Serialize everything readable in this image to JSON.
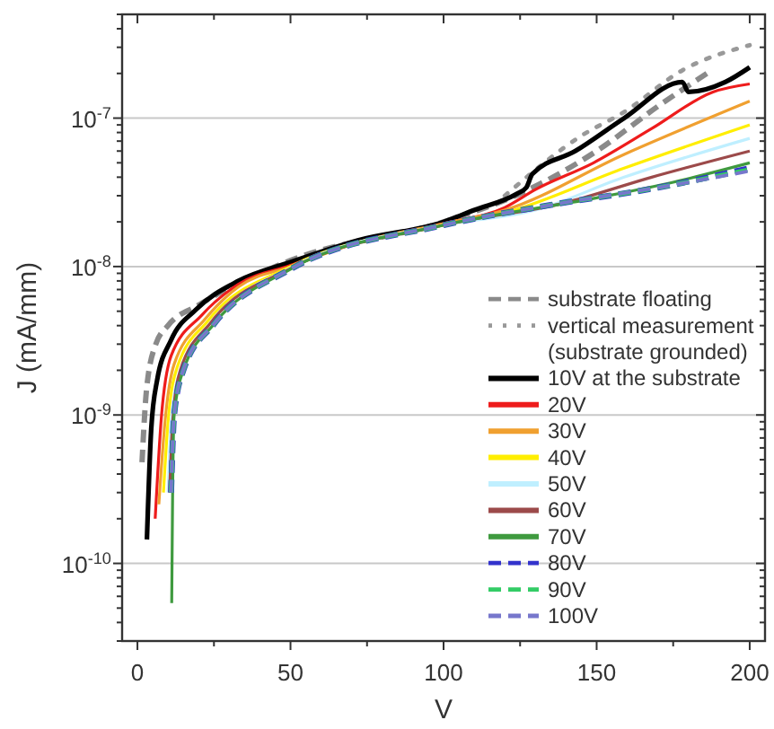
{
  "chart_data": {
    "type": "line",
    "xlabel": "V",
    "ylabel": "J (mA/mm)",
    "log": "y",
    "grid": "y",
    "legend": "bottom right",
    "xlim": [
      -5,
      205
    ],
    "xticks": [
      0,
      50,
      100,
      150,
      200
    ],
    "ylim": [
      3e-11,
      5e-07
    ],
    "yticks": [
      {
        "value": 1e-10,
        "label": "10$^{-10}$"
      },
      {
        "value": 1e-09,
        "label": "10$^{-9}$"
      },
      {
        "value": 1e-08,
        "label": "10$^{-8}$"
      },
      {
        "value": 1e-07,
        "label": "10$^{-7}$"
      }
    ],
    "series": [
      {
        "name": "substrate floating",
        "color": "#8a8a8a",
        "line_style": "dashed",
        "x": [
          1.5,
          3,
          6,
          10,
          20,
          50,
          100,
          125,
          150,
          170,
          186
        ],
        "values": [
          4.8e-10,
          1.5e-09,
          3e-09,
          4e-09,
          5.5e-09,
          1.1e-08,
          2e-08,
          3.1e-08,
          6e-08,
          1.2e-07,
          2e-07
        ]
      },
      {
        "name": "vertical measurement (substrate grounded)",
        "color": "#999999",
        "line_style": "dotted",
        "x": [
          120,
          145,
          159,
          178,
          200
        ],
        "values": [
          3e-08,
          7.6e-08,
          1.1e-07,
          2.1e-07,
          3.1e-07
        ]
      },
      {
        "name": "10V at the substrate",
        "color": "#000000",
        "line_style": "solid",
        "x": [
          3.1,
          4.5,
          6.4,
          11,
          19,
          33,
          50,
          72,
          100,
          110,
          124,
          127,
          129,
          143,
          159,
          178,
          180,
          192,
          200
        ],
        "values": [
          1.45e-10,
          8e-10,
          1.7e-09,
          3.2e-09,
          5.1e-09,
          8e-09,
          1.07e-08,
          1.5e-08,
          2e-08,
          2.4e-08,
          3.1e-08,
          3.4e-08,
          4.2e-08,
          6e-08,
          1e-07,
          1.75e-07,
          1.5e-07,
          1.75e-07,
          2.2e-07
        ]
      },
      {
        "name": "20V",
        "color": "#ee1c1c",
        "line_style": "solid",
        "x": [
          5.8,
          7.8,
          11,
          21,
          33,
          50,
          72,
          100,
          120,
          130,
          149,
          168,
          188,
          200
        ],
        "values": [
          2e-10,
          9.5e-10,
          2.5e-09,
          4.7e-09,
          7.6e-09,
          1.02e-08,
          1.45e-08,
          1.95e-08,
          2.5e-08,
          3.3e-08,
          5e-08,
          8.5e-08,
          1.5e-07,
          1.7e-07
        ]
      },
      {
        "name": "30V",
        "color": "#f0a030",
        "line_style": "solid",
        "x": [
          7,
          9,
          12,
          22,
          33,
          50,
          72,
          100,
          120,
          159,
          200
        ],
        "values": [
          2.5e-10,
          9e-10,
          2.2e-09,
          4.4e-09,
          7.3e-09,
          1e-08,
          1.45e-08,
          1.95e-08,
          2.4e-08,
          5.7e-08,
          1.3e-07
        ]
      },
      {
        "name": "40V",
        "color": "#ffee00",
        "line_style": "solid",
        "x": [
          8.5,
          10,
          13,
          23,
          50,
          100,
          120,
          159,
          200
        ],
        "values": [
          3e-10,
          9e-10,
          2.1e-09,
          4.3e-09,
          1e-08,
          1.9e-08,
          2.3e-08,
          4.6e-08,
          9e-08
        ]
      },
      {
        "name": "50V",
        "color": "#bfefff",
        "line_style": "solid",
        "x": [
          10,
          11,
          14,
          24,
          50,
          100,
          130,
          159,
          200
        ],
        "values": [
          3e-10,
          9e-10,
          2e-09,
          4.2e-09,
          9.8e-09,
          1.9e-08,
          2.4e-08,
          4e-08,
          7.3e-08
        ]
      },
      {
        "name": "60V",
        "color": "#9c4a4a",
        "line_style": "solid",
        "x": [
          10.5,
          11.5,
          14,
          24,
          50,
          100,
          140,
          168,
          200
        ],
        "values": [
          3e-10,
          9e-10,
          2e-09,
          4.2e-09,
          9.7e-09,
          1.9e-08,
          2.7e-08,
          4e-08,
          6e-08
        ]
      },
      {
        "name": "70V",
        "color": "#3f9a3f",
        "line_style": "solid",
        "x": [
          11.2,
          11.5,
          12,
          15,
          25,
          50,
          100,
          150,
          175,
          200
        ],
        "values": [
          5.4e-11,
          3e-10,
          1e-09,
          2e-09,
          4.1e-09,
          9.6e-09,
          1.9e-08,
          2.9e-08,
          3.7e-08,
          5e-08
        ]
      },
      {
        "name": "80V",
        "color": "#3333cc",
        "line_style": "dashed",
        "x": [
          11,
          12,
          15,
          25,
          50,
          100,
          135,
          170,
          200
        ],
        "values": [
          3e-10,
          1e-09,
          2e-09,
          4.1e-09,
          9.6e-09,
          1.9e-08,
          2.6e-08,
          3.4e-08,
          4.6e-08
        ]
      },
      {
        "name": "90V",
        "color": "#33cc66",
        "line_style": "dashed",
        "x": [
          11,
          12,
          15,
          25,
          50,
          100,
          135,
          170,
          200
        ],
        "values": [
          3e-10,
          1e-09,
          2e-09,
          4.1e-09,
          9.6e-09,
          1.9e-08,
          2.6e-08,
          3.4e-08,
          4.5e-08
        ]
      },
      {
        "name": "100V",
        "color": "#7777cc",
        "line_style": "dashed",
        "x": [
          11,
          12,
          15,
          25,
          50,
          100,
          135,
          170,
          200
        ],
        "values": [
          3e-10,
          1e-09,
          2e-09,
          4.1e-09,
          9.6e-09,
          1.9e-08,
          2.6e-08,
          3.4e-08,
          4.4e-08
        ]
      }
    ]
  }
}
